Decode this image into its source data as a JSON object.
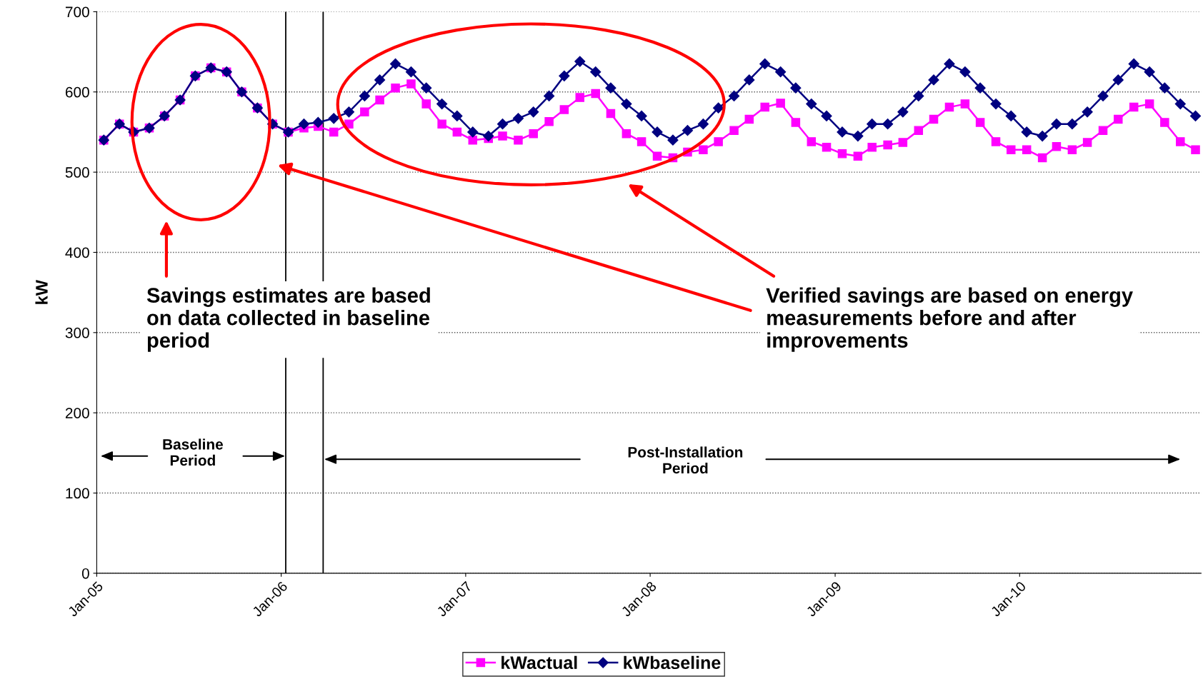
{
  "chart_data": {
    "type": "line",
    "ylabel": "kW",
    "x": [
      "2005-01-15",
      "2005-02-15",
      "2005-03-15",
      "2005-04-15",
      "2005-05-15",
      "2005-06-15",
      "2005-07-15",
      "2005-08-15",
      "2005-09-15",
      "2005-10-15",
      "2005-11-15",
      "2005-12-15",
      "2006-01-15",
      "2006-02-15",
      "2006-03-15",
      "2006-04-15",
      "2006-05-15",
      "2006-06-15",
      "2006-07-15",
      "2006-08-15",
      "2006-09-15",
      "2006-10-15",
      "2006-11-15",
      "2006-12-15",
      "2007-01-15",
      "2007-02-15",
      "2007-03-15",
      "2007-04-15",
      "2007-05-15",
      "2007-06-15",
      "2007-07-15",
      "2007-08-15",
      "2007-09-15",
      "2007-10-15",
      "2007-11-15",
      "2007-12-15",
      "2008-01-15",
      "2008-02-15",
      "2008-03-15",
      "2008-04-15",
      "2008-05-15",
      "2008-06-15",
      "2008-07-15",
      "2008-08-15",
      "2008-09-15",
      "2008-10-15",
      "2008-11-15",
      "2008-12-15",
      "2009-01-15",
      "2009-02-15",
      "2009-03-15",
      "2009-04-15",
      "2009-05-15",
      "2009-06-15",
      "2009-07-15",
      "2009-08-15",
      "2009-09-15",
      "2009-10-15",
      "2009-11-15",
      "2009-12-15",
      "2010-01-15",
      "2010-02-15",
      "2010-03-15",
      "2010-04-15",
      "2010-05-15",
      "2010-06-15",
      "2010-07-15",
      "2010-08-15",
      "2010-09-15",
      "2010-10-15",
      "2010-11-15",
      "2010-12-15"
    ],
    "series": [
      {
        "name": "kWactual",
        "color": "#ff00ff",
        "marker": "square",
        "values": [
          540,
          560,
          550,
          555,
          570,
          590,
          620,
          630,
          625,
          600,
          580,
          560,
          550,
          555,
          557,
          550,
          560,
          575,
          590,
          605,
          610,
          585,
          560,
          550,
          540,
          542,
          545,
          540,
          548,
          563,
          578,
          593,
          598,
          573,
          548,
          538,
          520,
          518,
          525,
          528,
          538,
          552,
          566,
          581,
          586,
          562,
          538,
          531,
          523,
          520,
          531,
          534,
          537,
          552,
          566,
          581,
          585,
          562,
          538,
          528,
          528,
          518,
          532,
          528,
          537,
          552,
          566,
          581,
          585,
          562,
          538,
          528
        ]
      },
      {
        "name": "kWbaseline",
        "color": "#000080",
        "marker": "diamond",
        "values": [
          540,
          560,
          550,
          555,
          570,
          590,
          620,
          630,
          625,
          600,
          580,
          560,
          550,
          560,
          562,
          567,
          575,
          595,
          615,
          635,
          625,
          605,
          585,
          570,
          550,
          545,
          560,
          567,
          575,
          595,
          620,
          638,
          625,
          605,
          585,
          570,
          550,
          540,
          552,
          560,
          580,
          595,
          615,
          635,
          625,
          605,
          585,
          570,
          550,
          545,
          560,
          560,
          575,
          595,
          615,
          635,
          625,
          605,
          585,
          570,
          550,
          545,
          560,
          560,
          575,
          595,
          615,
          635,
          625,
          605,
          585,
          570
        ]
      }
    ],
    "xlim": [
      "2005-01-01",
      "2010-12-26"
    ],
    "xticks": [
      {
        "value": "2005-01-01",
        "label": "Jan-05"
      },
      {
        "value": "2006-01-01",
        "label": "Jan-06"
      },
      {
        "value": "2007-01-01",
        "label": "Jan-07"
      },
      {
        "value": "2008-01-01",
        "label": "Jan-08"
      },
      {
        "value": "2009-01-01",
        "label": "Jan-09"
      },
      {
        "value": "2010-01-01",
        "label": "Jan-10"
      }
    ],
    "ylim": [
      0,
      700
    ],
    "yticks": [
      0,
      100,
      200,
      300,
      400,
      500,
      600,
      700
    ],
    "ref_lines": [
      {
        "axis": "x",
        "value": "2006-01-10",
        "color": "#000000"
      },
      {
        "axis": "x",
        "value": "2006-03-25",
        "color": "#000000"
      }
    ],
    "annotations": [
      "Savings estimates are based\non data collected in baseline\nperiod",
      "Verified savings are based on energy\nmeasurements before and after\nimprovements",
      "Baseline\nPeriod",
      "Post-Installation\nPeriod"
    ],
    "grid": "y",
    "legend": "bottom",
    "line_style": "solid"
  }
}
